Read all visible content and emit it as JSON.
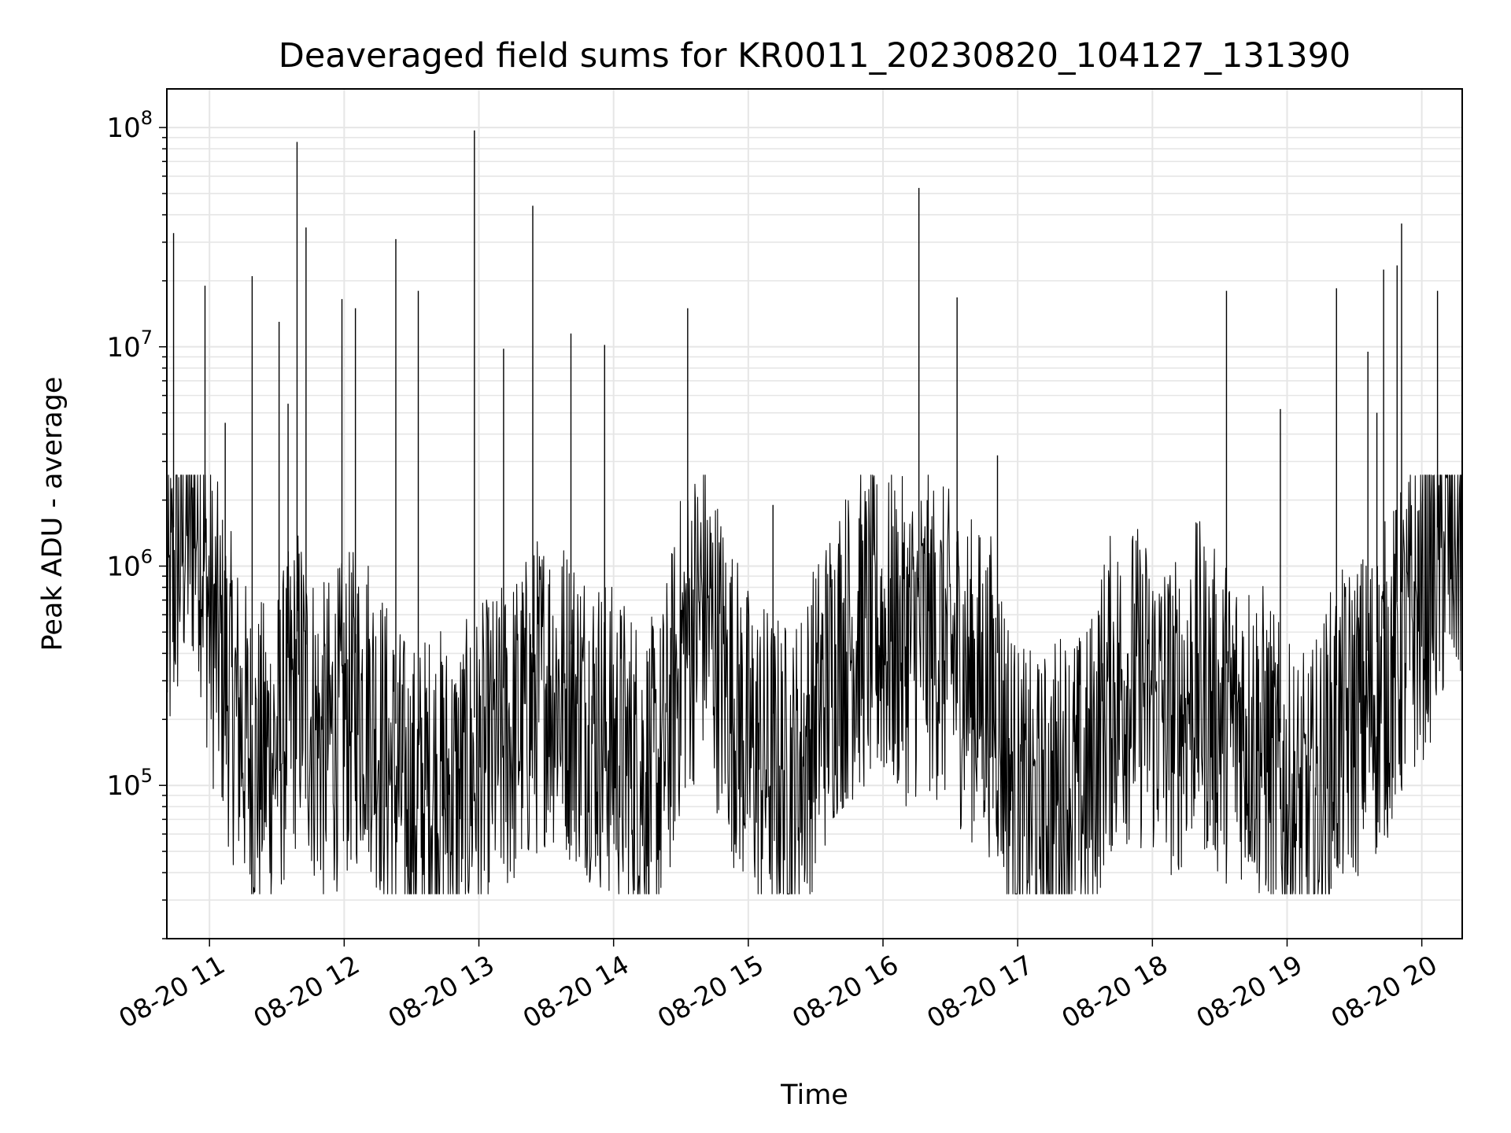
{
  "chart_data": {
    "type": "line",
    "title": "Deaveraged field sums for KR0011_20230820_104127_131390",
    "xlabel": "Time",
    "ylabel": "Peak ADU - average",
    "y_scale": "log",
    "grid": true,
    "line_color": "#000000",
    "xlim": [
      "2023-08-20 10:41",
      "2023-08-20 20:18"
    ],
    "ylim": [
      20000,
      150000000
    ],
    "x_ticks": [
      {
        "value": "2023-08-20 11:00",
        "label": "08-20 11"
      },
      {
        "value": "2023-08-20 12:00",
        "label": "08-20 12"
      },
      {
        "value": "2023-08-20 13:00",
        "label": "08-20 13"
      },
      {
        "value": "2023-08-20 14:00",
        "label": "08-20 14"
      },
      {
        "value": "2023-08-20 15:00",
        "label": "08-20 15"
      },
      {
        "value": "2023-08-20 16:00",
        "label": "08-20 16"
      },
      {
        "value": "2023-08-20 17:00",
        "label": "08-20 17"
      },
      {
        "value": "2023-08-20 18:00",
        "label": "08-20 18"
      },
      {
        "value": "2023-08-20 19:00",
        "label": "08-20 19"
      },
      {
        "value": "2023-08-20 20:00",
        "label": "08-20 20"
      }
    ],
    "y_ticks": [
      {
        "value": 100000,
        "base": "10",
        "exp": "5"
      },
      {
        "value": 1000000,
        "base": "10",
        "exp": "6"
      },
      {
        "value": 10000000,
        "base": "10",
        "exp": "7"
      },
      {
        "value": 100000000,
        "base": "10",
        "exp": "8"
      }
    ],
    "series": [
      {
        "x": [
          "2023-08-20 10:41",
          "2023-08-20 10:45",
          "2023-08-20 10:49",
          "2023-08-20 10:55",
          "2023-08-20 11:00",
          "2023-08-20 11:10",
          "2023-08-20 11:20",
          "2023-08-20 11:30",
          "2023-08-20 11:40",
          "2023-08-20 11:50",
          "2023-08-20 12:00",
          "2023-08-20 12:10",
          "2023-08-20 12:20",
          "2023-08-20 12:30",
          "2023-08-20 12:40",
          "2023-08-20 12:50",
          "2023-08-20 13:00",
          "2023-08-20 13:10",
          "2023-08-20 13:20",
          "2023-08-20 13:30",
          "2023-08-20 13:40",
          "2023-08-20 13:50",
          "2023-08-20 14:00",
          "2023-08-20 14:10",
          "2023-08-20 14:20",
          "2023-08-20 14:30",
          "2023-08-20 14:40",
          "2023-08-20 14:50",
          "2023-08-20 15:00",
          "2023-08-20 15:10",
          "2023-08-20 15:20",
          "2023-08-20 15:30",
          "2023-08-20 15:40",
          "2023-08-20 15:50",
          "2023-08-20 16:00",
          "2023-08-20 16:10",
          "2023-08-20 16:20",
          "2023-08-20 16:30",
          "2023-08-20 16:40",
          "2023-08-20 16:50",
          "2023-08-20 17:00",
          "2023-08-20 17:10",
          "2023-08-20 17:20",
          "2023-08-20 17:30",
          "2023-08-20 17:40",
          "2023-08-20 17:50",
          "2023-08-20 18:00",
          "2023-08-20 18:10",
          "2023-08-20 18:20",
          "2023-08-20 18:30",
          "2023-08-20 18:40",
          "2023-08-20 18:50",
          "2023-08-20 19:00",
          "2023-08-20 19:10",
          "2023-08-20 19:20",
          "2023-08-20 19:30",
          "2023-08-20 19:40",
          "2023-08-20 19:50",
          "2023-08-20 20:00",
          "2023-08-20 20:10",
          "2023-08-20 20:18"
        ],
        "y": [
          500000,
          1000000,
          1500000,
          1800000,
          600000,
          250000,
          120000,
          150000,
          300000,
          150000,
          200000,
          250000,
          120000,
          80000,
          100000,
          90000,
          120000,
          150000,
          200000,
          300000,
          250000,
          200000,
          150000,
          120000,
          100000,
          400000,
          700000,
          300000,
          150000,
          120000,
          100000,
          200000,
          400000,
          500000,
          500000,
          450000,
          500000,
          400000,
          300000,
          250000,
          80000,
          70000,
          100000,
          90000,
          250000,
          300000,
          250000,
          200000,
          300000,
          200000,
          200000,
          150000,
          80000,
          70000,
          150000,
          200000,
          250000,
          400000,
          700000,
          1200000,
          1500000
        ]
      }
    ],
    "spikes": [
      {
        "x": "2023-08-20 10:44",
        "y": 33000000
      },
      {
        "x": "2023-08-20 10:58",
        "y": 19000000
      },
      {
        "x": "2023-08-20 11:07",
        "y": 4500000
      },
      {
        "x": "2023-08-20 11:19",
        "y": 21000000
      },
      {
        "x": "2023-08-20 11:31",
        "y": 13000000
      },
      {
        "x": "2023-08-20 11:35",
        "y": 5500000
      },
      {
        "x": "2023-08-20 11:39",
        "y": 86000000
      },
      {
        "x": "2023-08-20 11:43",
        "y": 35000000
      },
      {
        "x": "2023-08-20 11:59",
        "y": 16500000
      },
      {
        "x": "2023-08-20 12:05",
        "y": 15000000
      },
      {
        "x": "2023-08-20 12:23",
        "y": 31000000
      },
      {
        "x": "2023-08-20 12:33",
        "y": 18000000
      },
      {
        "x": "2023-08-20 12:58",
        "y": 97000000
      },
      {
        "x": "2023-08-20 13:11",
        "y": 9800000
      },
      {
        "x": "2023-08-20 13:24",
        "y": 44000000
      },
      {
        "x": "2023-08-20 13:41",
        "y": 11500000
      },
      {
        "x": "2023-08-20 13:56",
        "y": 10200000
      },
      {
        "x": "2023-08-20 14:33",
        "y": 15000000
      },
      {
        "x": "2023-08-20 15:11",
        "y": 1900000
      },
      {
        "x": "2023-08-20 16:16",
        "y": 53000000
      },
      {
        "x": "2023-08-20 16:33",
        "y": 16800000
      },
      {
        "x": "2023-08-20 16:51",
        "y": 3200000
      },
      {
        "x": "2023-08-20 18:33",
        "y": 18000000
      },
      {
        "x": "2023-08-20 18:57",
        "y": 5200000
      },
      {
        "x": "2023-08-20 19:22",
        "y": 18500000
      },
      {
        "x": "2023-08-20 19:36",
        "y": 9500000
      },
      {
        "x": "2023-08-20 19:40",
        "y": 5000000
      },
      {
        "x": "2023-08-20 19:43",
        "y": 22500000
      },
      {
        "x": "2023-08-20 19:49",
        "y": 23500000
      },
      {
        "x": "2023-08-20 19:51",
        "y": 36500000
      },
      {
        "x": "2023-08-20 20:07",
        "y": 18000000
      }
    ]
  }
}
